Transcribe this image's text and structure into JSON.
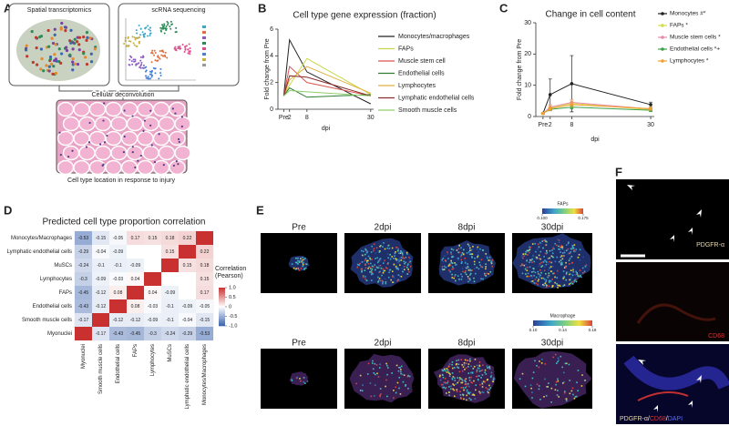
{
  "panel_labels": [
    "A",
    "B",
    "C",
    "D",
    "E",
    "F"
  ],
  "panel_a": {
    "labels": [
      "Spatial transcriptomics",
      "scRNA sequencing",
      "Cellular deconvolution",
      "Cell type location in response to injury"
    ]
  },
  "chart_data": [
    {
      "type": "line",
      "title": "Cell type gene expression (fraction)",
      "xlabel": "dpi",
      "ylabel": "Fold change from Pre",
      "x": [
        0,
        2,
        8,
        30
      ],
      "xlim": [
        -2,
        31
      ],
      "xticks": [
        {
          "value": 0,
          "label": "Pre"
        },
        2,
        8,
        30
      ],
      "ylim": [
        0,
        6
      ],
      "yticks": [
        0,
        2,
        4,
        6
      ],
      "legend": "right",
      "markers": false,
      "series": [
        {
          "name": "Monocytes/macrophages",
          "color": "#222222",
          "values": [
            1,
            5.2,
            2.8,
            0.4
          ]
        },
        {
          "name": "FAPs",
          "color": "#c9d64a",
          "values": [
            1,
            1.8,
            3.8,
            1.1
          ]
        },
        {
          "name": "Muscle stem cell",
          "color": "#d9534f",
          "values": [
            1,
            3.2,
            2.0,
            1.0
          ]
        },
        {
          "name": "Endothelial cells",
          "color": "#2e7d32",
          "values": [
            1,
            1.6,
            0.9,
            1.1
          ]
        },
        {
          "name": "Lymphocytes",
          "color": "#e0b040",
          "values": [
            1,
            2.2,
            3.2,
            1.2
          ]
        },
        {
          "name": "Lymphatic endothelial cells",
          "color": "#8b2e2e",
          "values": [
            1,
            2.5,
            2.4,
            1.0
          ]
        },
        {
          "name": "Smooth muscle cells",
          "color": "#8fcf6a",
          "values": [
            1,
            1.4,
            1.3,
            1.0
          ]
        }
      ]
    },
    {
      "type": "line",
      "title": "Change in cell content",
      "xlabel": "dpi",
      "ylabel": "Fold change from Pre",
      "x": [
        0,
        2,
        8,
        30
      ],
      "xlim": [
        -2,
        31
      ],
      "xticks": [
        {
          "value": 0,
          "label": "Pre"
        },
        2,
        8,
        30
      ],
      "ylim": [
        0,
        30
      ],
      "yticks": [
        0,
        10,
        20,
        30
      ],
      "legend": "right",
      "markers": true,
      "series": [
        {
          "name": "Monocytes #*",
          "color": "#222222",
          "values": [
            1,
            7,
            10.5,
            3.8
          ],
          "errors": [
            0.2,
            5,
            9,
            0.8
          ]
        },
        {
          "name": "FAPs *",
          "color": "#d4dc4a",
          "values": [
            1,
            2.8,
            4.2,
            2.2
          ],
          "errors": [
            0.1,
            0.8,
            1,
            0.5
          ]
        },
        {
          "name": "Muscle stem cells *",
          "color": "#e98aa8",
          "values": [
            1,
            3,
            4.5,
            2.4
          ],
          "errors": [
            0.1,
            0.8,
            1,
            0.5
          ]
        },
        {
          "name": "Endothelial cells *+",
          "color": "#3aa04a",
          "values": [
            1,
            2.3,
            3,
            2
          ],
          "errors": [
            0.1,
            0.5,
            0.6,
            0.4
          ]
        },
        {
          "name": "Lymphocytes *",
          "color": "#f0a030",
          "values": [
            1,
            2.5,
            3.8,
            2.5
          ],
          "errors": [
            0.1,
            0.6,
            0.8,
            0.5
          ]
        }
      ]
    },
    {
      "type": "heatmap",
      "title": "Predicted cell type proportion correlation",
      "x_categories": [
        "Myonuclei",
        "Smooth muscle cells",
        "Endothelial cells",
        "FAPs",
        "Lymphocytes",
        "MuSCs",
        "Lymphatic endothelial cells",
        "Monocytes/Macrophages"
      ],
      "y_categories": [
        "Monocytes/Macrophages",
        "Lymphatic endothelial cells",
        "MuSCs",
        "Lymphocytes",
        "FAPs",
        "Endothelial cells",
        "Smooth muscle cells",
        "Myonuclei"
      ],
      "values": [
        [
          -0.53,
          -0.15,
          -0.05,
          0.17,
          0.15,
          0.18,
          0.22,
          1
        ],
        [
          -0.29,
          -0.04,
          -0.09,
          null,
          null,
          0.15,
          1,
          0.22
        ],
        [
          -0.24,
          -0.1,
          -0.1,
          -0.09,
          null,
          1,
          0.15,
          0.18
        ],
        [
          -0.3,
          -0.09,
          -0.03,
          0.04,
          1,
          null,
          null,
          0.15
        ],
        [
          -0.45,
          -0.12,
          0.08,
          1,
          0.04,
          -0.09,
          null,
          0.17
        ],
        [
          -0.43,
          -0.12,
          1,
          0.08,
          -0.03,
          -0.1,
          -0.09,
          -0.05
        ],
        [
          -0.17,
          1,
          -0.12,
          -0.12,
          -0.09,
          -0.1,
          -0.04,
          -0.15
        ],
        [
          1,
          -0.17,
          -0.43,
          -0.45,
          -0.3,
          -0.24,
          -0.29,
          -0.53
        ]
      ],
      "zlim": [
        -1,
        1
      ],
      "zticks": [
        {
          "value": 1,
          "label": "1.0"
        },
        0.5,
        0,
        -0.5,
        {
          "value": -1,
          "label": "-1.0"
        }
      ],
      "colorbar_label": "Correlation (Pearson)",
      "colors": [
        "#3a62ad",
        "#ffffff",
        "#c8312f"
      ]
    }
  ],
  "panel_e": {
    "timepoints": [
      "Pre",
      "2dpi",
      "8dpi",
      "30dpi"
    ],
    "colorbars": [
      {
        "label": "FAPs",
        "zlim": [
          0.1,
          0.175
        ],
        "ticks": [
          {
            "value": 0.1,
            "label": "0.100"
          },
          0.175
        ]
      },
      {
        "label": "Macrophage",
        "zlim": [
          0.1,
          0.18
        ],
        "ticks": [
          {
            "value": 0.1,
            "label": "0.10"
          },
          0.14,
          0.18
        ]
      }
    ]
  },
  "panel_f": {
    "labels": [
      "PDGFR-α",
      "CD68"
    ],
    "merge_label": [
      "PDGFR-α",
      "/",
      "CD68",
      "/",
      "DAPI"
    ]
  }
}
